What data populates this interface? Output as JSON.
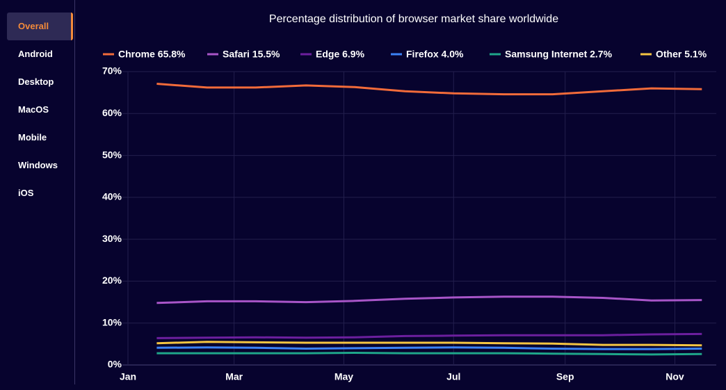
{
  "sidebar": {
    "items": [
      "Overall",
      "Android",
      "Desktop",
      "MacOS",
      "Mobile",
      "Windows",
      "iOS"
    ],
    "active": 0
  },
  "chart_data": {
    "type": "line",
    "title": "Percentage distribution of browser market share worldwide",
    "x": [
      16,
      44,
      71,
      99,
      126,
      154,
      181,
      209,
      236,
      264,
      291,
      319
    ],
    "xlim": [
      0,
      327
    ],
    "xticks": [
      {
        "value": 0,
        "label": "Jan"
      },
      {
        "value": 59,
        "label": "Mar"
      },
      {
        "value": 120,
        "label": "May"
      },
      {
        "value": 181,
        "label": "Jul"
      },
      {
        "value": 243,
        "label": "Sep"
      },
      {
        "value": 304,
        "label": "Nov"
      }
    ],
    "ylim": [
      0,
      70
    ],
    "yticks": [
      {
        "value": 0,
        "label": "0%"
      },
      {
        "value": 10,
        "label": "10%"
      },
      {
        "value": 20,
        "label": "20%"
      },
      {
        "value": 30,
        "label": "30%"
      },
      {
        "value": 40,
        "label": "40%"
      },
      {
        "value": 50,
        "label": "50%"
      },
      {
        "value": 60,
        "label": "60%"
      },
      {
        "value": 70,
        "label": "70%"
      }
    ],
    "grid": true,
    "legend": "top",
    "series": [
      {
        "name": "Chrome 65.8%",
        "color": "#f26b3a",
        "values": [
          67.1,
          66.2,
          66.2,
          66.7,
          66.3,
          65.3,
          64.8,
          64.6,
          64.6,
          65.3,
          66.0,
          65.8
        ]
      },
      {
        "name": "Safari 15.5%",
        "color": "#a855c8",
        "values": [
          14.8,
          15.2,
          15.2,
          15.0,
          15.3,
          15.8,
          16.1,
          16.3,
          16.3,
          16.0,
          15.4,
          15.5
        ]
      },
      {
        "name": "Edge 6.9%",
        "color": "#6c1f9e",
        "values": [
          6.4,
          6.5,
          6.6,
          6.5,
          6.6,
          6.9,
          7.0,
          7.1,
          7.1,
          7.1,
          7.3,
          7.4
        ]
      },
      {
        "name": "Firefox 4.0%",
        "color": "#3b82f6",
        "values": [
          4.1,
          4.2,
          4.1,
          3.9,
          4.0,
          4.1,
          4.2,
          4.1,
          3.9,
          3.8,
          3.8,
          3.9
        ]
      },
      {
        "name": "Samsung Internet 2.7%",
        "color": "#1fa68a",
        "values": [
          2.8,
          2.8,
          2.8,
          2.8,
          2.9,
          2.8,
          2.8,
          2.8,
          2.7,
          2.6,
          2.5,
          2.6
        ]
      },
      {
        "name": "Other 5.1%",
        "color": "#f5c542",
        "values": [
          5.2,
          5.5,
          5.4,
          5.3,
          5.3,
          5.3,
          5.3,
          5.2,
          5.1,
          4.8,
          4.8,
          4.7
        ]
      }
    ]
  }
}
